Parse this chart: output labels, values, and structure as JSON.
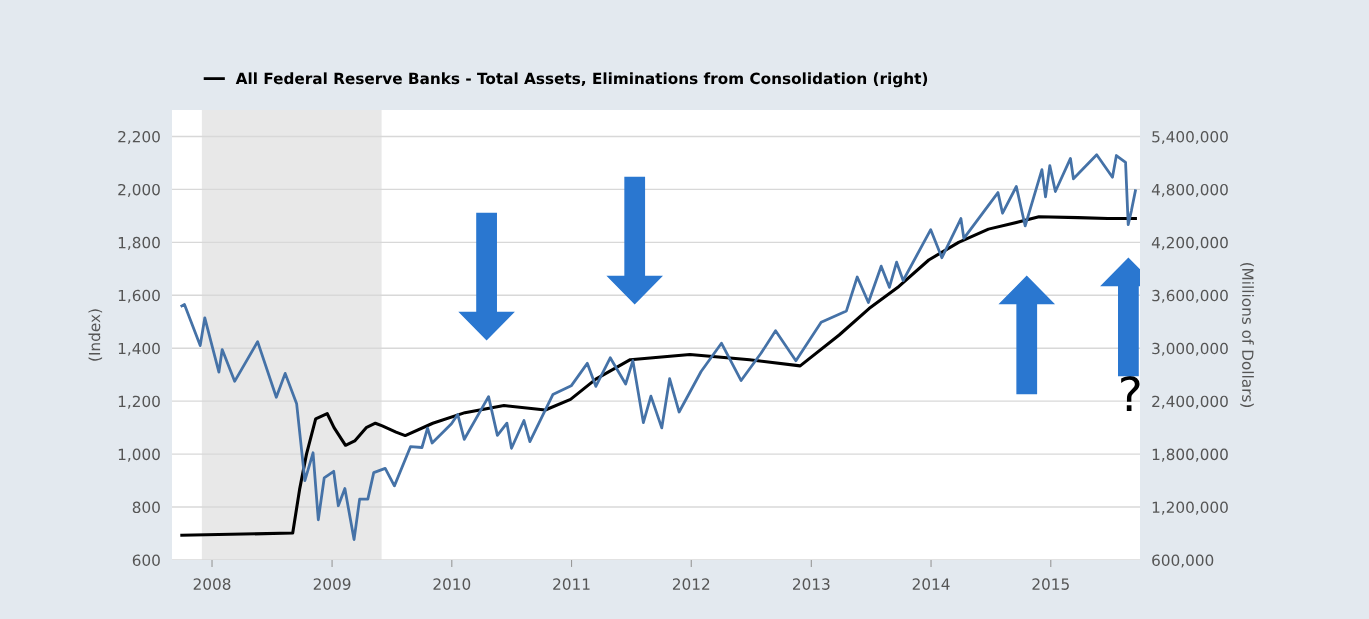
{
  "chart_data": {
    "type": "line",
    "ylabel": "(Index)",
    "y2label": "(Millions of Dollars)",
    "annotations": [
      "?"
    ],
    "legend": "top left",
    "grid": "y",
    "xlim": [
      "2007-09-01",
      "2015-09-30"
    ],
    "xticks": [
      "2008",
      "2009",
      "2010",
      "2011",
      "2012",
      "2013",
      "2014",
      "2015"
    ],
    "ylim": [
      600,
      2300
    ],
    "yticks": [
      {
        "value": 600,
        "label": "600"
      },
      {
        "value": 800,
        "label": "800"
      },
      {
        "value": 1000,
        "label": "1,000"
      },
      {
        "value": 1200,
        "label": "1,200"
      },
      {
        "value": 1400,
        "label": "1,400"
      },
      {
        "value": 1600,
        "label": "1,600"
      },
      {
        "value": 1800,
        "label": "1,800"
      },
      {
        "value": 2000,
        "label": "2,000"
      },
      {
        "value": 2200,
        "label": "2,200"
      }
    ],
    "y2lim": [
      600000,
      5700000
    ],
    "y2ticks": [
      {
        "value": 600000,
        "label": "600,000"
      },
      {
        "value": 1200000,
        "label": "1,200,000"
      },
      {
        "value": 1800000,
        "label": "1,800,000"
      },
      {
        "value": 2400000,
        "label": "2,400,000"
      },
      {
        "value": 3000000,
        "label": "3,000,000"
      },
      {
        "value": 3600000,
        "label": "3,600,000"
      },
      {
        "value": 4200000,
        "label": "4,200,000"
      },
      {
        "value": 4800000,
        "label": "4,800,000"
      },
      {
        "value": 5400000,
        "label": "5,400,000"
      }
    ],
    "bands": [
      {
        "axis": "x",
        "from": "2007-12-01",
        "to": "2009-06-01",
        "color": "#e8e8e8"
      }
    ],
    "series": [
      {
        "color": "#4572a7",
        "x": [
          "2007-10-01",
          "2007-10-09",
          "2007-11-26",
          "2007-12-10",
          "2008-01-22",
          "2008-02-01",
          "2008-03-10",
          "2008-05-19",
          "2008-07-15",
          "2008-08-11",
          "2008-09-15",
          "2008-10-10",
          "2008-11-04",
          "2008-11-20",
          "2008-12-08",
          "2009-01-06",
          "2009-01-20",
          "2009-02-09",
          "2009-03-09",
          "2009-03-26",
          "2009-04-20",
          "2009-05-08",
          "2009-06-12",
          "2009-07-10",
          "2009-08-28",
          "2009-10-02",
          "2009-10-19",
          "2009-11-02",
          "2009-12-31",
          "2010-01-19",
          "2010-02-08",
          "2010-04-23",
          "2010-05-20",
          "2010-06-18",
          "2010-07-02",
          "2010-08-09",
          "2010-08-27",
          "2010-11-05",
          "2010-12-31",
          "2011-02-18",
          "2011-03-16",
          "2011-04-29",
          "2011-06-15",
          "2011-07-07",
          "2011-08-08",
          "2011-08-31",
          "2011-10-03",
          "2011-10-27",
          "2011-11-25",
          "2012-01-31",
          "2012-04-02",
          "2012-06-01",
          "2012-07-31",
          "2012-09-14",
          "2012-11-15",
          "2013-01-31",
          "2013-04-18",
          "2013-05-21",
          "2013-06-24",
          "2013-08-02",
          "2013-08-27",
          "2013-09-18",
          "2013-10-08",
          "2013-12-31",
          "2014-02-03",
          "2014-04-02",
          "2014-04-11",
          "2014-07-24",
          "2014-08-07",
          "2014-09-18",
          "2014-10-15",
          "2014-12-05",
          "2014-12-16",
          "2014-12-29",
          "2015-01-15",
          "2015-03-02",
          "2015-03-11",
          "2015-05-21",
          "2015-07-08",
          "2015-07-20",
          "2015-08-17",
          "2015-08-25",
          "2015-09-04",
          "2015-09-16"
        ],
        "values": [
          1560,
          1565,
          1410,
          1515,
          1310,
          1395,
          1275,
          1425,
          1215,
          1305,
          1190,
          900,
          1005,
          752,
          910,
          935,
          805,
          870,
          677,
          830,
          830,
          930,
          946,
          880,
          1028,
          1025,
          1098,
          1042,
          1115,
          1150,
          1056,
          1217,
          1071,
          1117,
          1022,
          1127,
          1047,
          1225,
          1258,
          1343,
          1256,
          1364,
          1265,
          1353,
          1119,
          1219,
          1099,
          1285,
          1159,
          1312,
          1419,
          1278,
          1380,
          1466,
          1353,
          1498,
          1541,
          1669,
          1573,
          1710,
          1630,
          1725,
          1656,
          1848,
          1742,
          1890,
          1815,
          1988,
          1910,
          2011,
          1862,
          2075,
          1972,
          2090,
          1992,
          2117,
          2040,
          2131,
          2046,
          2128,
          2102,
          1867,
          1921,
          1995
        ]
      },
      {
        "name": "All Federal Reserve Banks - Total Assets, Eliminations from Consolidation (right)",
        "color": "#000000",
        "axis": "y2",
        "x": [
          "2007-10-01",
          "2008-09-03",
          "2008-09-24",
          "2008-10-15",
          "2008-11-12",
          "2008-12-17",
          "2009-01-07",
          "2009-02-11",
          "2009-03-11",
          "2009-04-15",
          "2009-05-13",
          "2009-06-03",
          "2009-07-15",
          "2009-08-12",
          "2009-11-04",
          "2010-02-10",
          "2010-06-09",
          "2010-10-13",
          "2010-12-29",
          "2011-03-16",
          "2011-06-29",
          "2011-12-28",
          "2012-06-27",
          "2012-11-28",
          "2013-03-27",
          "2013-06-26",
          "2013-09-25",
          "2013-12-25",
          "2014-03-26",
          "2014-06-25",
          "2014-09-24",
          "2014-11-26",
          "2015-03-25",
          "2015-06-24",
          "2015-09-16"
        ],
        "values": [
          880000,
          905000,
          1400000,
          1800000,
          2200000,
          2260000,
          2100000,
          1900000,
          1950000,
          2100000,
          2150000,
          2120000,
          2050000,
          2010000,
          2150000,
          2270000,
          2350000,
          2300000,
          2420000,
          2650000,
          2870000,
          2930000,
          2870000,
          2800000,
          3150000,
          3450000,
          3700000,
          4000000,
          4200000,
          4350000,
          4430000,
          4490000,
          4480000,
          4470000,
          4470000
        ]
      }
    ]
  }
}
